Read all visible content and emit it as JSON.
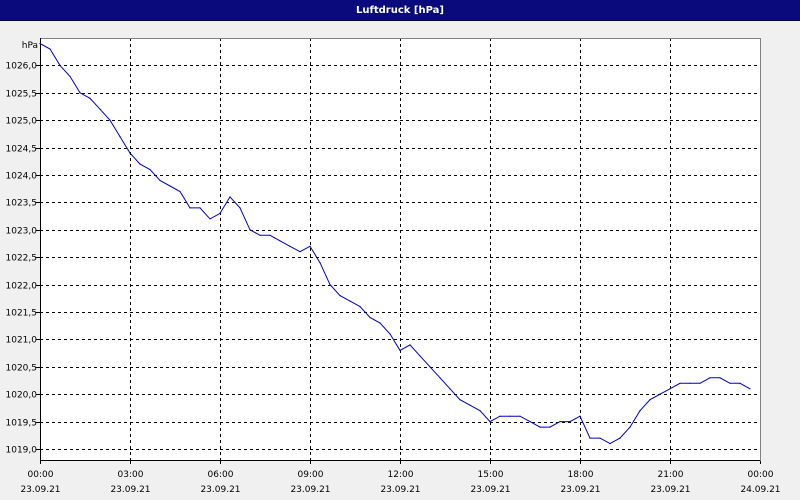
{
  "window": {
    "title": "Luftdruck [hPa]"
  },
  "chart_data": {
    "type": "line",
    "title": "Luftdruck [hPa]",
    "ylabel": "hPa",
    "xlabel": "",
    "ylim": [
      1018.8,
      1026.5
    ],
    "y_ticks": [
      {
        "value": 1019.0,
        "label": "1019,0"
      },
      {
        "value": 1019.5,
        "label": "1019,5"
      },
      {
        "value": 1020.0,
        "label": "1020,0"
      },
      {
        "value": 1020.5,
        "label": "1020,5"
      },
      {
        "value": 1021.0,
        "label": "1021,0"
      },
      {
        "value": 1021.5,
        "label": "1021,5"
      },
      {
        "value": 1022.0,
        "label": "1022,0"
      },
      {
        "value": 1022.5,
        "label": "1022,5"
      },
      {
        "value": 1023.0,
        "label": "1023,0"
      },
      {
        "value": 1023.5,
        "label": "1023,5"
      },
      {
        "value": 1024.0,
        "label": "1024,0"
      },
      {
        "value": 1024.5,
        "label": "1024,5"
      },
      {
        "value": 1025.0,
        "label": "1025,0"
      },
      {
        "value": 1025.5,
        "label": "1025,5"
      },
      {
        "value": 1026.0,
        "label": "1026,0"
      }
    ],
    "x_range": [
      "23.09.21 00:00",
      "24.09.21 00:00"
    ],
    "x_ticks": [
      {
        "value": "23.09.21 00:00",
        "time": "00:00",
        "date": "23.09.21"
      },
      {
        "value": "23.09.21 03:00",
        "time": "03:00",
        "date": "23.09.21"
      },
      {
        "value": "23.09.21 06:00",
        "time": "06:00",
        "date": "23.09.21"
      },
      {
        "value": "23.09.21 09:00",
        "time": "09:00",
        "date": "23.09.21"
      },
      {
        "value": "23.09.21 12:00",
        "time": "12:00",
        "date": "23.09.21"
      },
      {
        "value": "23.09.21 15:00",
        "time": "15:00",
        "date": "23.09.21"
      },
      {
        "value": "23.09.21 18:00",
        "time": "18:00",
        "date": "23.09.21"
      },
      {
        "value": "23.09.21 21:00",
        "time": "21:00",
        "date": "23.09.21"
      },
      {
        "value": "24.09.21 00:00",
        "time": "00:00",
        "date": "24.09.21"
      }
    ],
    "grid": true,
    "grid_style": "dashed",
    "line_color": "#0000cc",
    "series": [
      {
        "x": [
          "23.09.21 00:00",
          "23.09.21 00:20",
          "23.09.21 00:40",
          "23.09.21 01:00",
          "23.09.21 01:20",
          "23.09.21 01:40",
          "23.09.21 02:00",
          "23.09.21 02:20",
          "23.09.21 02:40",
          "23.09.21 03:00",
          "23.09.21 03:20",
          "23.09.21 03:40",
          "23.09.21 04:00",
          "23.09.21 04:20",
          "23.09.21 04:40",
          "23.09.21 05:00",
          "23.09.21 05:20",
          "23.09.21 05:40",
          "23.09.21 06:00",
          "23.09.21 06:20",
          "23.09.21 06:40",
          "23.09.21 07:00",
          "23.09.21 07:20",
          "23.09.21 07:40",
          "23.09.21 08:00",
          "23.09.21 08:20",
          "23.09.21 08:40",
          "23.09.21 09:00",
          "23.09.21 09:20",
          "23.09.21 09:40",
          "23.09.21 10:00",
          "23.09.21 10:20",
          "23.09.21 10:40",
          "23.09.21 11:00",
          "23.09.21 11:20",
          "23.09.21 11:40",
          "23.09.21 12:00",
          "23.09.21 12:20",
          "23.09.21 12:40",
          "23.09.21 13:00",
          "23.09.21 13:20",
          "23.09.21 13:40",
          "23.09.21 14:00",
          "23.09.21 14:20",
          "23.09.21 14:40",
          "23.09.21 15:00",
          "23.09.21 15:20",
          "23.09.21 15:40",
          "23.09.21 16:00",
          "23.09.21 16:20",
          "23.09.21 16:40",
          "23.09.21 17:00",
          "23.09.21 17:20",
          "23.09.21 17:40",
          "23.09.21 18:00",
          "23.09.21 18:20",
          "23.09.21 18:40",
          "23.09.21 19:00",
          "23.09.21 19:20",
          "23.09.21 19:40",
          "23.09.21 20:00",
          "23.09.21 20:20",
          "23.09.21 20:40",
          "23.09.21 21:00",
          "23.09.21 21:20",
          "23.09.21 21:40",
          "23.09.21 22:00",
          "23.09.21 22:20",
          "23.09.21 22:40",
          "23.09.21 23:00",
          "23.09.21 23:20",
          "23.09.21 23:40"
        ],
        "values": [
          1026.4,
          1026.3,
          1026.0,
          1025.8,
          1025.5,
          1025.4,
          1025.2,
          1025.0,
          1024.7,
          1024.4,
          1024.2,
          1024.1,
          1023.9,
          1023.8,
          1023.7,
          1023.4,
          1023.4,
          1023.2,
          1023.3,
          1023.6,
          1023.4,
          1023.0,
          1022.9,
          1022.9,
          1022.8,
          1022.7,
          1022.6,
          1022.7,
          1022.4,
          1022.0,
          1021.8,
          1021.7,
          1021.6,
          1021.4,
          1021.3,
          1021.1,
          1020.8,
          1020.9,
          1020.7,
          1020.5,
          1020.3,
          1020.1,
          1019.9,
          1019.8,
          1019.7,
          1019.5,
          1019.6,
          1019.6,
          1019.6,
          1019.5,
          1019.4,
          1019.4,
          1019.5,
          1019.5,
          1019.6,
          1019.2,
          1019.2,
          1019.1,
          1019.2,
          1019.4,
          1019.7,
          1019.9,
          1020.0,
          1020.1,
          1020.2,
          1020.2,
          1020.2,
          1020.3,
          1020.3,
          1020.2,
          1020.2,
          1020.1
        ]
      }
    ]
  }
}
